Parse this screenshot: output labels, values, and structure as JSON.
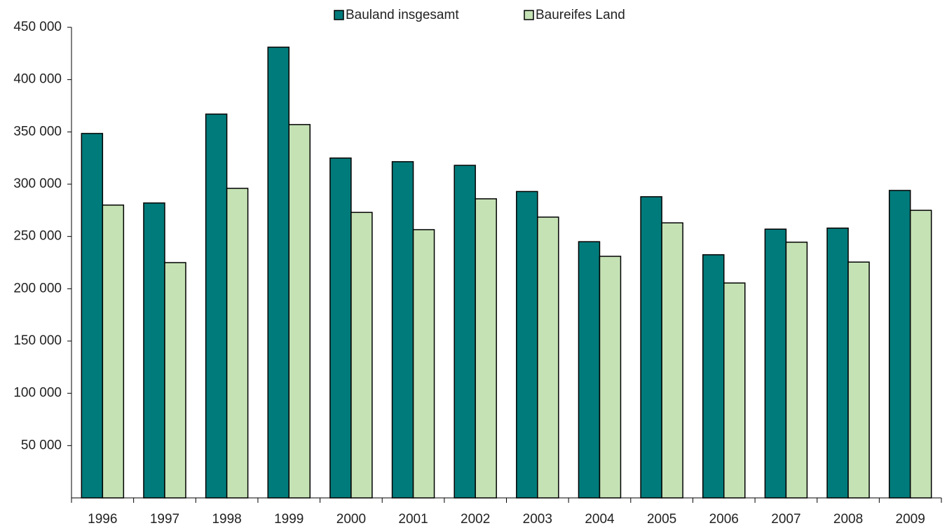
{
  "chart_data": {
    "type": "bar",
    "categories": [
      "1996",
      "1997",
      "1998",
      "1999",
      "2000",
      "2001",
      "2002",
      "2003",
      "2004",
      "2005",
      "2006",
      "2007",
      "2008",
      "2009"
    ],
    "series": [
      {
        "name": "Bauland insgesamt",
        "color": "#007b7b",
        "values": [
          348500,
          282000,
          367000,
          431000,
          325000,
          321500,
          318000,
          293000,
          245000,
          288000,
          232500,
          257000,
          258000,
          294000
        ]
      },
      {
        "name": "Baureifes Land",
        "color": "#c5e2b5",
        "values": [
          280000,
          225000,
          296000,
          357000,
          273000,
          256500,
          286000,
          268500,
          231000,
          263000,
          205500,
          244500,
          225500,
          275000
        ]
      }
    ],
    "ylim": [
      0,
      450000
    ],
    "yticks": [
      {
        "value": 50000,
        "label": "50 000"
      },
      {
        "value": 100000,
        "label": "100 000"
      },
      {
        "value": 150000,
        "label": "150 000"
      },
      {
        "value": 200000,
        "label": "200 000"
      },
      {
        "value": 250000,
        "label": "250 000"
      },
      {
        "value": 300000,
        "label": "300 000"
      },
      {
        "value": 350000,
        "label": "350 000"
      },
      {
        "value": 400000,
        "label": "400 000"
      },
      {
        "value": 450000,
        "label": "450 000"
      }
    ],
    "legend": "top"
  }
}
